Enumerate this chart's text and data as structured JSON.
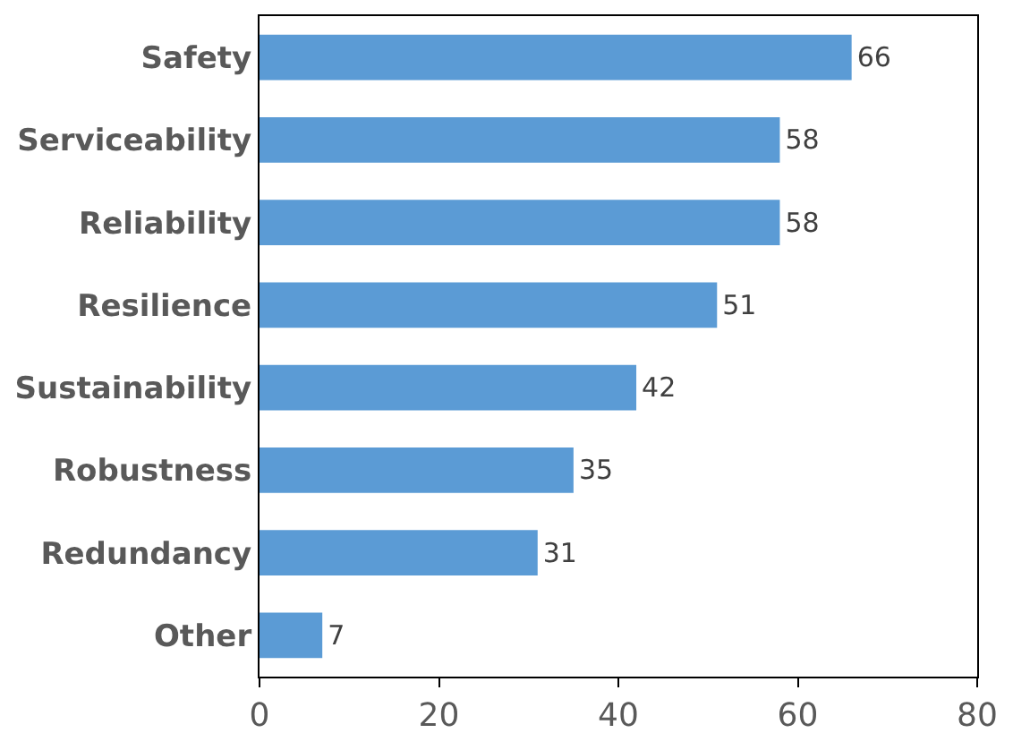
{
  "chart_data": {
    "type": "bar",
    "orientation": "horizontal",
    "categories": [
      "Safety",
      "Serviceability",
      "Reliability",
      "Resilience",
      "Sustainability",
      "Robustness",
      "Redundancy",
      "Other"
    ],
    "values": [
      66,
      58,
      58,
      51,
      42,
      35,
      31,
      7
    ],
    "color": "#5b9bd5",
    "xlim": [
      0,
      80
    ],
    "xticks": [
      0,
      20,
      40,
      60,
      80
    ],
    "data_labels": true
  }
}
